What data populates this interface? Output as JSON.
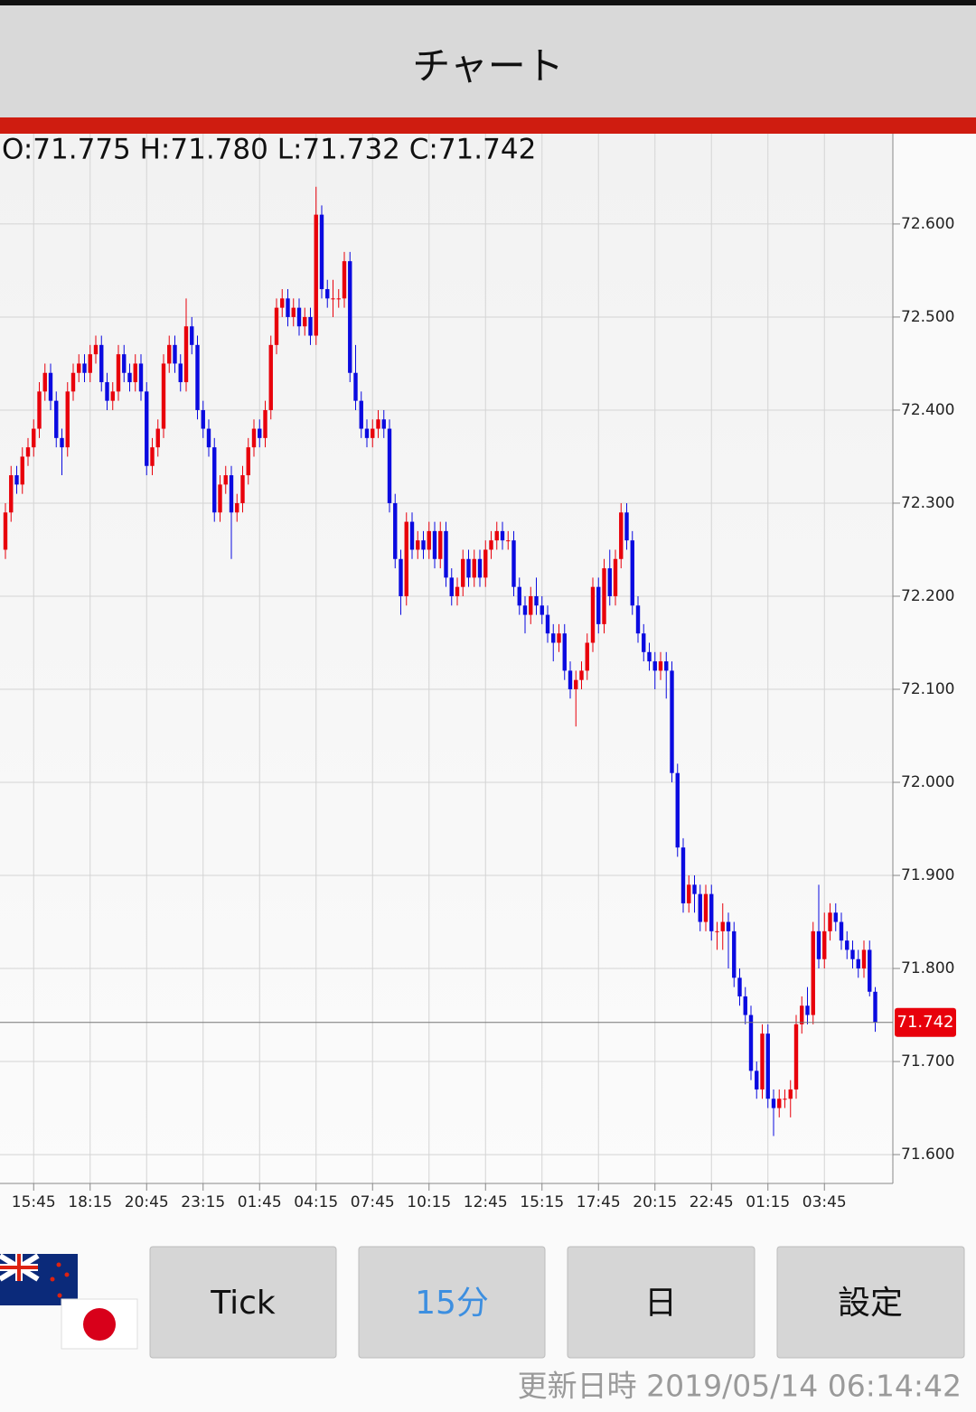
{
  "header": {
    "title": "チャート"
  },
  "buttons": [
    "Tick",
    "15分",
    "日",
    "設定"
  ],
  "updated": "更新日時 2019/05/14 06:14:42",
  "chart_data": {
    "type": "candlestick",
    "ohlc_label": "O:71.775 H:71.780 L:71.732 C:71.742",
    "up_color": "#e8000b",
    "down_color": "#0a0ae0",
    "grid": true,
    "ylim": [
      71.569,
      72.697
    ],
    "yticks": [
      {
        "value": 71.6,
        "label": "71.600"
      },
      {
        "value": 71.7,
        "label": "71.700"
      },
      {
        "value": 71.8,
        "label": "71.800"
      },
      {
        "value": 71.9,
        "label": "71.900"
      },
      {
        "value": 72.0,
        "label": "72.000"
      },
      {
        "value": 72.1,
        "label": "72.100"
      },
      {
        "value": 72.2,
        "label": "72.200"
      },
      {
        "value": 72.3,
        "label": "72.300"
      },
      {
        "value": 72.4,
        "label": "72.400"
      },
      {
        "value": 72.5,
        "label": "72.500"
      },
      {
        "value": 72.6,
        "label": "72.600"
      }
    ],
    "last_value": 71.742,
    "last_color": "#e8000b",
    "categories": [
      null,
      null,
      null,
      null,
      null,
      "15:45",
      null,
      null,
      null,
      null,
      null,
      null,
      null,
      null,
      null,
      "18:15",
      null,
      null,
      null,
      null,
      null,
      null,
      null,
      null,
      null,
      "20:45",
      null,
      null,
      null,
      null,
      null,
      null,
      null,
      null,
      null,
      "23:15",
      null,
      null,
      null,
      null,
      null,
      null,
      null,
      null,
      null,
      "01:45",
      null,
      null,
      null,
      null,
      null,
      null,
      null,
      null,
      null,
      "04:15",
      null,
      null,
      null,
      null,
      null,
      null,
      null,
      null,
      null,
      "07:45",
      null,
      null,
      null,
      null,
      null,
      null,
      null,
      null,
      null,
      "10:15",
      null,
      null,
      null,
      null,
      null,
      null,
      null,
      null,
      null,
      "12:45",
      null,
      null,
      null,
      null,
      null,
      null,
      null,
      null,
      null,
      "15:15",
      null,
      null,
      null,
      null,
      null,
      null,
      null,
      null,
      null,
      "17:45",
      null,
      null,
      null,
      null,
      null,
      null,
      null,
      null,
      null,
      "20:15",
      null,
      null,
      null,
      null,
      null,
      null,
      null,
      null,
      null,
      "22:45",
      null,
      null,
      null,
      null,
      null,
      null,
      null,
      null,
      null,
      "01:15",
      null,
      null,
      null,
      null,
      null,
      null,
      null,
      null,
      null,
      "03:45",
      null,
      null,
      null,
      null,
      null,
      null,
      null,
      null,
      null
    ],
    "open": [
      72.25,
      72.29,
      72.33,
      72.32,
      72.35,
      72.36,
      72.38,
      72.42,
      72.44,
      72.41,
      72.37,
      72.36,
      72.42,
      72.44,
      72.45,
      72.44,
      72.46,
      72.47,
      72.43,
      72.41,
      72.42,
      72.46,
      72.44,
      72.43,
      72.45,
      72.42,
      72.34,
      72.36,
      72.38,
      72.45,
      72.47,
      72.45,
      72.43,
      72.49,
      72.47,
      72.4,
      72.38,
      72.36,
      72.29,
      72.32,
      72.33,
      72.29,
      72.3,
      72.33,
      72.36,
      72.38,
      72.37,
      72.4,
      72.47,
      72.51,
      72.52,
      72.5,
      72.51,
      72.49,
      72.5,
      72.48,
      72.61,
      72.53,
      72.52,
      72.52,
      72.52,
      72.56,
      72.44,
      72.41,
      72.38,
      72.37,
      72.38,
      72.39,
      72.38,
      72.3,
      72.24,
      72.2,
      72.28,
      72.25,
      72.26,
      72.25,
      72.27,
      72.24,
      72.27,
      72.22,
      72.2,
      72.21,
      72.24,
      72.22,
      72.24,
      72.22,
      72.25,
      72.26,
      72.27,
      72.26,
      72.26,
      72.21,
      72.19,
      72.18,
      72.2,
      72.19,
      72.18,
      72.16,
      72.15,
      72.16,
      72.12,
      72.1,
      72.11,
      72.12,
      72.15,
      72.21,
      72.17,
      72.23,
      72.2,
      72.24,
      72.29,
      72.26,
      72.19,
      72.16,
      72.14,
      72.13,
      72.12,
      72.13,
      72.12,
      72.01,
      71.93,
      71.87,
      71.89,
      71.88,
      71.85,
      71.88,
      71.84,
      71.84,
      71.85,
      71.84,
      71.79,
      71.77,
      71.75,
      71.69,
      71.67,
      71.73,
      71.66,
      71.65,
      71.66,
      71.66,
      71.67,
      71.74,
      71.76,
      71.75,
      71.84,
      71.81,
      71.84,
      71.86,
      71.85,
      71.83,
      71.82,
      71.81,
      71.8,
      71.82,
      71.775
    ],
    "high": [
      72.3,
      72.34,
      72.34,
      72.36,
      72.37,
      72.39,
      72.43,
      72.45,
      72.45,
      72.42,
      72.38,
      72.43,
      72.45,
      72.46,
      72.46,
      72.47,
      72.48,
      72.48,
      72.44,
      72.43,
      72.47,
      72.47,
      72.45,
      72.46,
      72.46,
      72.43,
      72.37,
      72.39,
      72.46,
      72.48,
      72.48,
      72.46,
      72.52,
      72.5,
      72.48,
      72.41,
      72.39,
      72.37,
      72.33,
      72.34,
      72.34,
      72.31,
      72.34,
      72.37,
      72.39,
      72.39,
      72.41,
      72.48,
      72.52,
      72.53,
      72.53,
      72.52,
      72.52,
      72.51,
      72.51,
      72.64,
      72.62,
      72.54,
      72.54,
      72.53,
      72.57,
      72.57,
      72.47,
      72.42,
      72.39,
      72.39,
      72.4,
      72.4,
      72.39,
      72.31,
      72.25,
      72.29,
      72.29,
      72.27,
      72.27,
      72.28,
      72.28,
      72.28,
      72.28,
      72.23,
      72.22,
      72.25,
      72.25,
      72.25,
      72.25,
      72.26,
      72.27,
      72.28,
      72.28,
      72.27,
      72.27,
      72.22,
      72.2,
      72.21,
      72.22,
      72.2,
      72.19,
      72.17,
      72.17,
      72.17,
      72.13,
      72.12,
      72.13,
      72.16,
      72.22,
      72.22,
      72.24,
      72.25,
      72.25,
      72.3,
      72.3,
      72.27,
      72.2,
      72.17,
      72.15,
      72.14,
      72.14,
      72.14,
      72.13,
      72.02,
      71.94,
      71.9,
      71.9,
      71.89,
      71.89,
      71.89,
      71.85,
      71.87,
      71.86,
      71.85,
      71.8,
      71.78,
      71.76,
      71.7,
      71.74,
      71.74,
      71.67,
      71.67,
      71.67,
      71.68,
      71.75,
      71.77,
      71.78,
      71.85,
      71.89,
      71.86,
      71.87,
      71.87,
      71.86,
      71.84,
      71.83,
      71.82,
      71.83,
      71.83,
      71.78
    ],
    "low": [
      72.24,
      72.28,
      72.31,
      72.31,
      72.34,
      72.35,
      72.37,
      72.41,
      72.4,
      72.36,
      72.33,
      72.35,
      72.41,
      72.43,
      72.43,
      72.43,
      72.45,
      72.42,
      72.4,
      72.4,
      72.41,
      72.43,
      72.42,
      72.42,
      72.41,
      72.33,
      72.33,
      72.35,
      72.37,
      72.44,
      72.44,
      72.42,
      72.42,
      72.46,
      72.39,
      72.37,
      72.35,
      72.28,
      72.28,
      72.31,
      72.24,
      72.28,
      72.29,
      72.32,
      72.35,
      72.36,
      72.36,
      72.39,
      72.46,
      72.5,
      72.49,
      72.49,
      72.48,
      72.48,
      72.47,
      72.47,
      72.52,
      72.51,
      72.5,
      72.51,
      72.51,
      72.43,
      72.4,
      72.37,
      72.36,
      72.36,
      72.37,
      72.37,
      72.29,
      72.23,
      72.18,
      72.19,
      72.24,
      72.24,
      72.24,
      72.24,
      72.23,
      72.23,
      72.21,
      72.19,
      72.19,
      72.2,
      72.21,
      72.21,
      72.21,
      72.21,
      72.24,
      72.25,
      72.25,
      72.25,
      72.2,
      72.18,
      72.16,
      72.17,
      72.18,
      72.17,
      72.15,
      72.13,
      72.14,
      72.11,
      72.09,
      72.06,
      72.1,
      72.11,
      72.14,
      72.16,
      72.16,
      72.19,
      72.19,
      72.23,
      72.25,
      72.18,
      72.15,
      72.13,
      72.12,
      72.1,
      72.11,
      72.09,
      72.0,
      71.92,
      71.86,
      71.86,
      71.86,
      71.84,
      71.84,
      71.83,
      71.82,
      71.82,
      71.8,
      71.78,
      71.76,
      71.74,
      71.68,
      71.66,
      71.66,
      71.65,
      71.62,
      71.64,
      71.65,
      71.64,
      71.66,
      71.73,
      71.74,
      71.74,
      71.8,
      71.8,
      71.83,
      71.84,
      71.82,
      71.81,
      71.8,
      71.79,
      71.79,
      71.77,
      71.732
    ],
    "close": [
      72.29,
      72.33,
      72.32,
      72.35,
      72.36,
      72.38,
      72.42,
      72.44,
      72.41,
      72.37,
      72.36,
      72.42,
      72.44,
      72.45,
      72.44,
      72.46,
      72.47,
      72.43,
      72.41,
      72.42,
      72.46,
      72.44,
      72.43,
      72.45,
      72.42,
      72.34,
      72.36,
      72.38,
      72.45,
      72.47,
      72.45,
      72.43,
      72.49,
      72.47,
      72.4,
      72.38,
      72.36,
      72.29,
      72.32,
      72.33,
      72.29,
      72.3,
      72.33,
      72.36,
      72.38,
      72.37,
      72.4,
      72.47,
      72.51,
      72.52,
      72.5,
      72.51,
      72.49,
      72.5,
      72.48,
      72.61,
      72.53,
      72.52,
      72.52,
      72.52,
      72.56,
      72.44,
      72.41,
      72.38,
      72.37,
      72.38,
      72.39,
      72.38,
      72.3,
      72.24,
      72.2,
      72.28,
      72.25,
      72.26,
      72.25,
      72.27,
      72.24,
      72.27,
      72.22,
      72.2,
      72.21,
      72.24,
      72.22,
      72.24,
      72.22,
      72.25,
      72.26,
      72.27,
      72.26,
      72.26,
      72.21,
      72.19,
      72.18,
      72.2,
      72.19,
      72.18,
      72.16,
      72.15,
      72.16,
      72.12,
      72.1,
      72.11,
      72.12,
      72.15,
      72.21,
      72.17,
      72.23,
      72.2,
      72.24,
      72.29,
      72.26,
      72.19,
      72.16,
      72.14,
      72.13,
      72.12,
      72.13,
      72.12,
      72.01,
      71.93,
      71.87,
      71.89,
      71.88,
      71.85,
      71.88,
      71.84,
      71.84,
      71.85,
      71.84,
      71.79,
      71.77,
      71.75,
      71.69,
      71.67,
      71.73,
      71.66,
      71.65,
      71.66,
      71.66,
      71.67,
      71.74,
      71.76,
      71.75,
      71.84,
      71.81,
      71.84,
      71.86,
      71.85,
      71.83,
      71.82,
      71.81,
      71.8,
      71.82,
      71.775,
      71.742
    ]
  }
}
